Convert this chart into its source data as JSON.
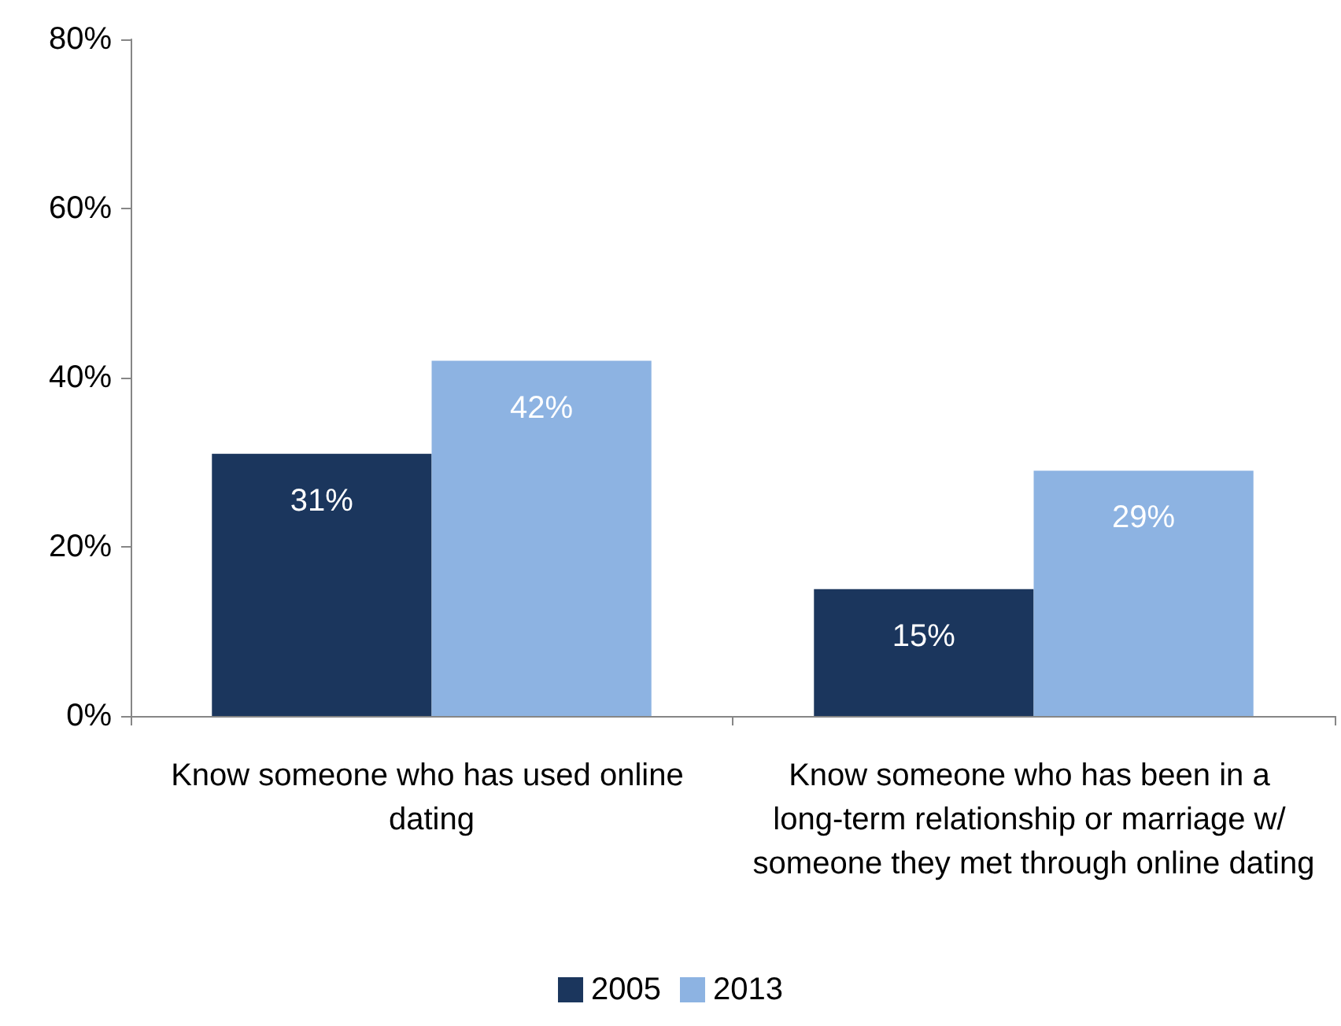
{
  "chart_data": {
    "type": "bar",
    "categories": [
      "Know someone who has used online dating",
      "Know someone who has been in a long-term relationship or marriage w/ someone they met through online dating"
    ],
    "series": [
      {
        "name": "2005",
        "color": "#1b365d",
        "values": [
          31,
          15
        ],
        "value_labels": [
          "31%",
          "15%"
        ]
      },
      {
        "name": "2013",
        "color": "#8db3e2",
        "values": [
          42,
          29
        ],
        "value_labels": [
          "42%",
          "29%"
        ]
      }
    ],
    "ylim": [
      0,
      80
    ],
    "yticks": [
      {
        "value": 0,
        "label": "0%"
      },
      {
        "value": 20,
        "label": "20%"
      },
      {
        "value": 40,
        "label": "40%"
      },
      {
        "value": 60,
        "label": "60%"
      },
      {
        "value": 80,
        "label": "80%"
      }
    ],
    "grid": false,
    "legend": "bottom"
  }
}
